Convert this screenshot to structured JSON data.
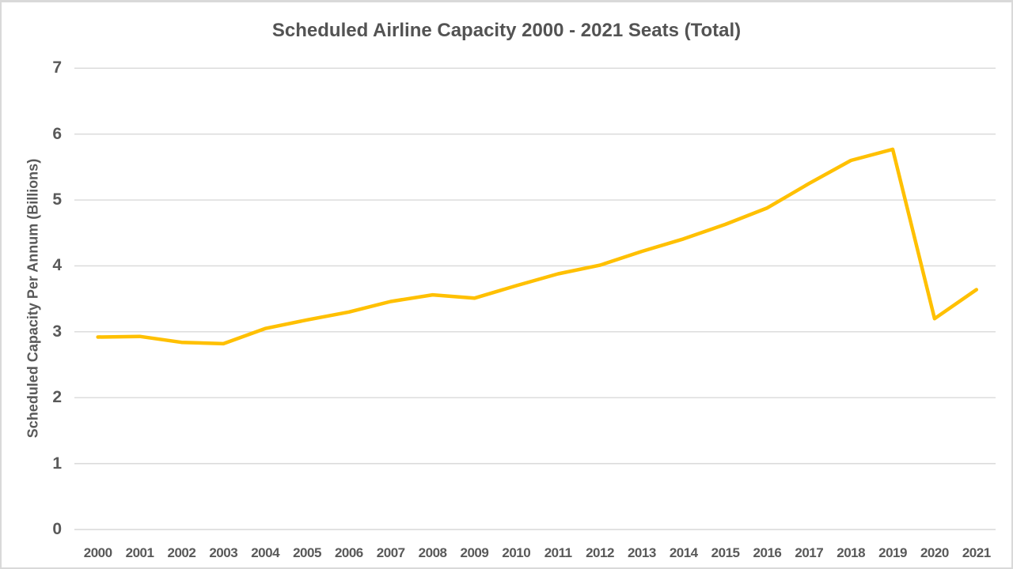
{
  "window": {
    "background": "#ffffff",
    "border_color": "#d9d9d9"
  },
  "chart_data": {
    "type": "line",
    "title": "Scheduled Airline Capacity 2000 - 2021 Seats (Total)",
    "xlabel": "",
    "ylabel": "Scheduled Capacity Per Annum (Billions)",
    "x": [
      2000,
      2001,
      2002,
      2003,
      2004,
      2005,
      2006,
      2007,
      2008,
      2009,
      2010,
      2011,
      2012,
      2013,
      2014,
      2015,
      2016,
      2017,
      2018,
      2019,
      2020,
      2021
    ],
    "series": [
      {
        "name": "Seats (Total)",
        "values": [
          2.92,
          2.93,
          2.84,
          2.82,
          3.05,
          3.18,
          3.3,
          3.46,
          3.56,
          3.51,
          3.7,
          3.88,
          4.01,
          4.22,
          4.41,
          4.63,
          4.88,
          5.25,
          5.6,
          5.77,
          3.2,
          3.64
        ],
        "color": "#FFC000"
      }
    ],
    "ylim": [
      0,
      7
    ],
    "yticks": [
      0,
      1,
      2,
      3,
      4,
      5,
      6,
      7
    ],
    "grid": true,
    "legend": false,
    "text_color": "#595959",
    "grid_color": "#D9D9D9",
    "line_width": 4.5
  }
}
